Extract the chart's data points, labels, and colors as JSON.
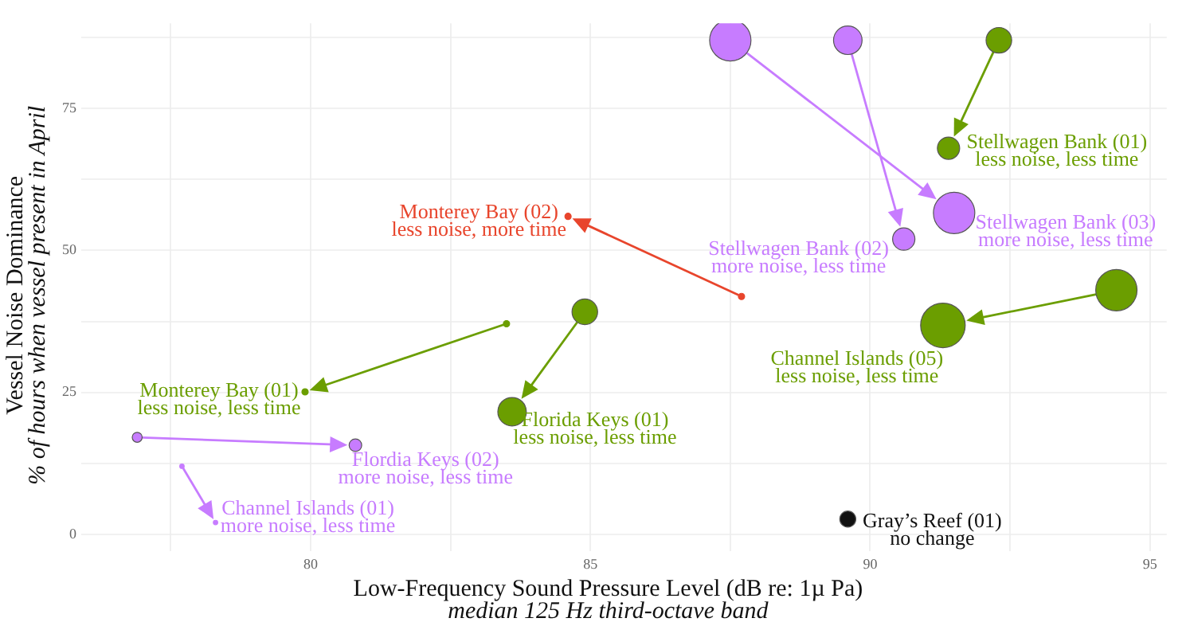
{
  "chart_data": {
    "type": "bubble",
    "xlabel": "Low-Frequency Sound Pressure Level (dB re: 1µ Pa)\nmedian 125 Hz third-octave band",
    "ylabel": "Vessel Noise Dominance\n% of hours when vessel present in April",
    "xlim": [
      75.9,
      95.3
    ],
    "ylim": [
      -3,
      90
    ],
    "xticks": [
      {
        "value": 77.5,
        "label": null
      },
      80,
      {
        "value": 82.5,
        "label": null
      },
      85,
      {
        "value": 87.5,
        "label": null
      },
      90,
      {
        "value": 92.5,
        "label": null
      },
      95
    ],
    "yticks": [
      0,
      {
        "value": 12.5,
        "label": null
      },
      25,
      {
        "value": 37.5,
        "label": null
      },
      50,
      {
        "value": 62.5,
        "label": null
      },
      75,
      {
        "value": 87.5,
        "label": null
      }
    ],
    "grid": true,
    "legend": false,
    "series": [
      {
        "color": "#6b9e00",
        "x": [
          92.3,
          91.4
        ],
        "values": [
          87,
          68
        ],
        "sizes": [
          0.33,
          0.25
        ]
      },
      {
        "color": "#c77cff",
        "x": [
          87.5,
          91.5
        ],
        "values": [
          87,
          56.6
        ],
        "sizes": [
          0.86,
          0.86
        ]
      },
      {
        "color": "#c77cff",
        "x": [
          89.6,
          90.6
        ],
        "values": [
          87,
          52
        ],
        "sizes": [
          0.41,
          0.25
        ]
      },
      {
        "color": "#e8452c",
        "x": [
          87.7,
          84.6
        ],
        "values": [
          41.9,
          56
        ],
        "sizes": [
          0.02,
          0.02
        ]
      },
      {
        "color": "#6b9e00",
        "x": [
          94.4,
          91.3
        ],
        "values": [
          43,
          36.8
        ],
        "sizes": [
          0.86,
          1
        ]
      },
      {
        "color": "#6b9e00",
        "x": [
          83.5,
          79.9
        ],
        "values": [
          37.1,
          25.1
        ],
        "sizes": [
          0.02,
          0.02
        ]
      },
      {
        "color": "#6b9e00",
        "x": [
          84.9,
          83.6
        ],
        "values": [
          39.2,
          21.6
        ],
        "sizes": [
          0.33,
          0.41
        ]
      },
      {
        "color": "#c77cff",
        "x": [
          76.9,
          80.8
        ],
        "values": [
          17.1,
          15.7
        ],
        "sizes": [
          0.05,
          0.08
        ]
      },
      {
        "color": "#c77cff",
        "x": [
          77.7,
          78.3
        ],
        "values": [
          12,
          2.1
        ],
        "sizes": [
          0.01,
          0.01
        ]
      },
      {
        "color": "#111111",
        "x": [
          89.6
        ],
        "values": [
          2.7
        ],
        "sizes": [
          0.13
        ]
      }
    ],
    "annotations": [
      {
        "text": "Stellwagen Bank (01)\nless noise, less time",
        "x": 91.4,
        "y": 68
      },
      {
        "text": "Stellwagen Bank (03)\nmore noise, less time",
        "x": 91.5,
        "y": 56.6
      },
      {
        "text": "Stellwagen Bank (02)\nmore noise, less time",
        "x": 90.6,
        "y": 52
      },
      {
        "text": "Monterey Bay (02)\nless noise, more time",
        "x": 84.6,
        "y": 56
      },
      {
        "text": "Channel Islands (05)\nless noise, less time",
        "x": 91.3,
        "y": 36.8
      },
      {
        "text": "Monterey Bay (01)\nless noise, less time",
        "x": 79.9,
        "y": 25.1
      },
      {
        "text": "Florida Keys (01)\nless noise, less time",
        "x": 83.6,
        "y": 21.6
      },
      {
        "text": "Flordia Keys (02)\nmore noise, less time",
        "x": 80.8,
        "y": 15.7
      },
      {
        "text": "Channel Islands (01)\nmore noise, less time",
        "x": 78.3,
        "y": 2.1
      },
      {
        "text": "Gray’s Reef (01)\nno change",
        "x": 89.6,
        "y": 2.7
      }
    ]
  }
}
